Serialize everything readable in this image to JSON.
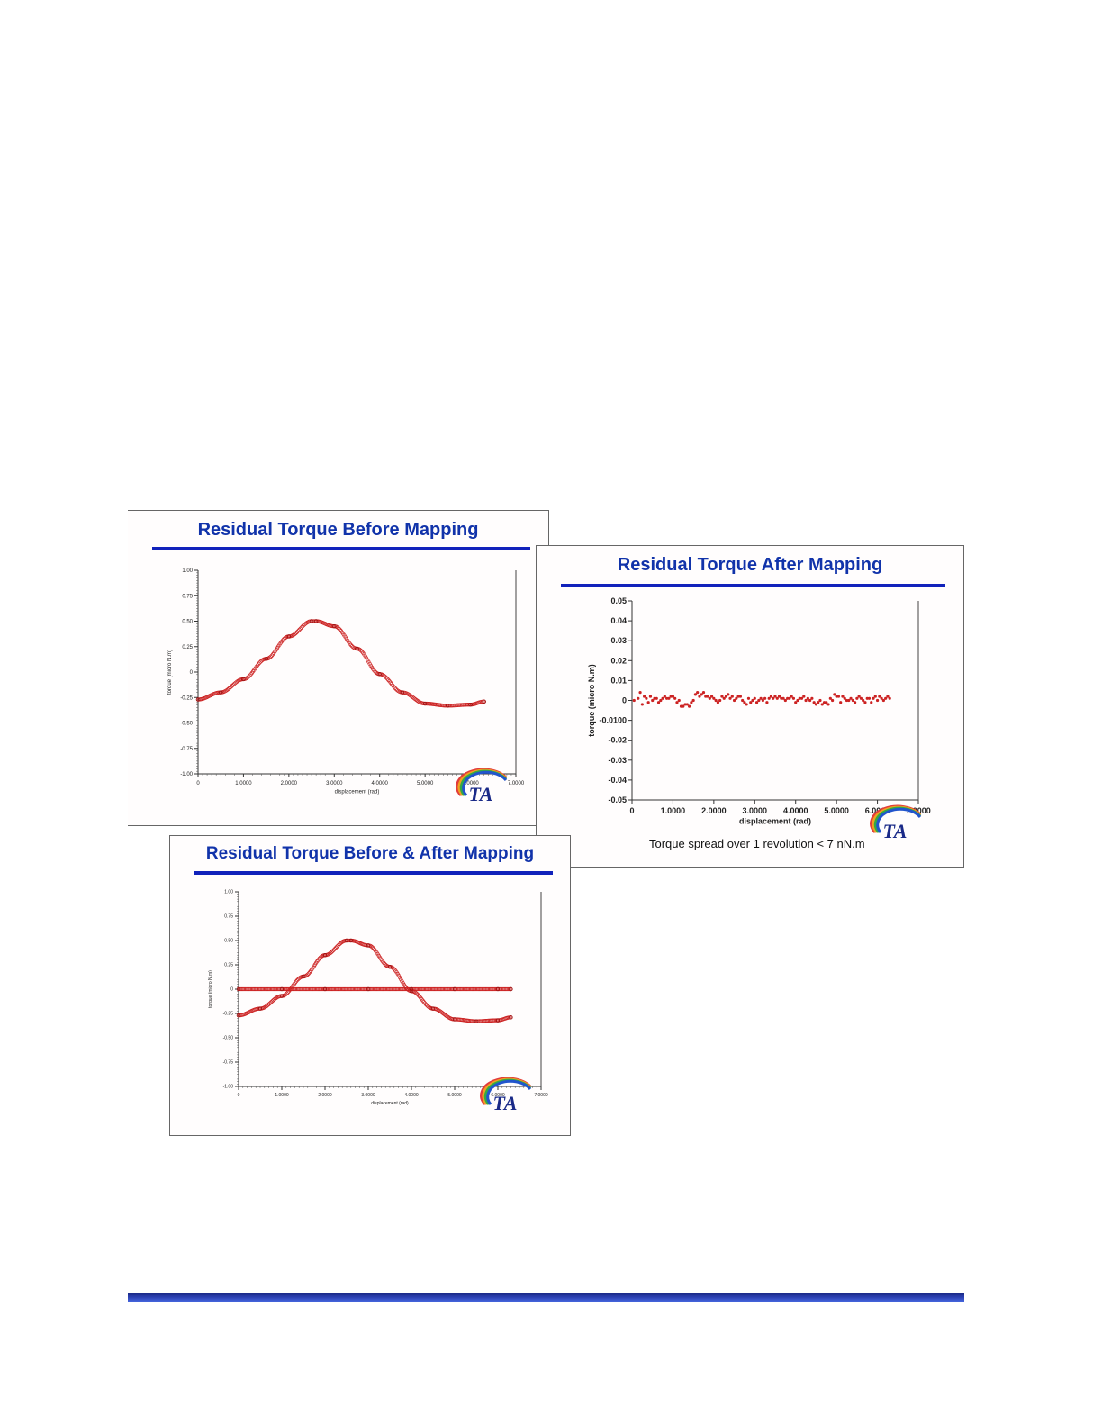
{
  "colors": {
    "title": "#1133aa",
    "rule": "#1122bb",
    "data": "#cc2222",
    "footer": "#2b3fb0"
  },
  "slides": {
    "before": {
      "title": "Residual Torque Before Mapping",
      "logo": {
        "text": "TA",
        "icon": "ta-logo-icon"
      }
    },
    "after": {
      "title": "Residual Torque After Mapping",
      "note": "Torque spread over 1 revolution < 7 nN.m",
      "logo": {
        "text": "TA",
        "icon": "ta-logo-icon"
      }
    },
    "combined": {
      "title": "Residual Torque Before & After Mapping",
      "logo": {
        "text": "TA",
        "icon": "ta-logo-icon"
      }
    }
  },
  "chart_data": [
    {
      "id": "before",
      "type": "scatter",
      "title": "",
      "xlabel": "displacement (rad)",
      "ylabel": "torque (micro N.m)",
      "xlim": [
        0,
        7
      ],
      "ylim": [
        -1,
        1
      ],
      "xticks": [
        0,
        1,
        2,
        3,
        4,
        5,
        6,
        7
      ],
      "xtick_labels": [
        "0",
        "1.0000",
        "2.0000",
        "3.0000",
        "4.0000",
        "5.0000",
        "6.0000",
        "7.0000"
      ],
      "yticks": [
        1,
        0.75,
        0.5,
        0.25,
        0,
        -0.25,
        -0.5,
        -0.75,
        -1
      ],
      "ytick_labels": [
        "1.00",
        "0.75",
        "0.50",
        "0.25",
        "0",
        "-0.25",
        "-0.50",
        "-0.75",
        "-1.00"
      ],
      "grid": false,
      "series": [
        {
          "x": [
            0,
            0.5,
            1.0,
            1.5,
            2.0,
            2.5,
            2.6,
            3.0,
            3.5,
            4.0,
            4.5,
            5.0,
            5.5,
            6.0,
            6.3
          ],
          "y": [
            -0.27,
            -0.2,
            -0.07,
            0.13,
            0.35,
            0.5,
            0.5,
            0.45,
            0.23,
            -0.02,
            -0.2,
            -0.31,
            -0.33,
            -0.32,
            -0.29
          ]
        }
      ]
    },
    {
      "id": "after",
      "type": "scatter",
      "title": "",
      "xlabel": "displacement (rad)",
      "ylabel": "torque (micro N.m)",
      "xlim": [
        0,
        7
      ],
      "ylim": [
        -0.05,
        0.05
      ],
      "xticks": [
        0,
        1,
        2,
        3,
        4,
        5,
        6,
        7
      ],
      "xtick_labels": [
        "0",
        "1.0000",
        "2.0000",
        "3.0000",
        "4.0000",
        "5.0000",
        "6.0000",
        "7.0000"
      ],
      "yticks": [
        0.05,
        0.04,
        0.03,
        0.02,
        0.01,
        0,
        -0.01,
        -0.02,
        -0.03,
        -0.04,
        -0.05
      ],
      "ytick_labels": [
        "0.05",
        "0.04",
        "0.03",
        "0.02",
        "0.01",
        "0",
        "-0.0100",
        "-0.02",
        "-0.03",
        "-0.04",
        "-0.05"
      ],
      "grid": false,
      "series": [
        {
          "x": [
            0.05,
            0.15,
            0.2,
            0.25,
            0.3,
            0.35,
            0.4,
            0.45,
            0.5,
            0.55,
            0.6,
            0.65,
            0.7,
            0.75,
            0.8,
            0.85,
            0.9,
            0.95,
            1.0,
            1.05,
            1.1,
            1.15,
            1.2,
            1.25,
            1.3,
            1.35,
            1.4,
            1.45,
            1.5,
            1.55,
            1.6,
            1.65,
            1.7,
            1.75,
            1.8,
            1.85,
            1.9,
            1.95,
            2.0,
            2.05,
            2.1,
            2.15,
            2.2,
            2.25,
            2.3,
            2.35,
            2.4,
            2.45,
            2.5,
            2.55,
            2.6,
            2.65,
            2.7,
            2.75,
            2.8,
            2.85,
            2.9,
            2.95,
            3.0,
            3.05,
            3.1,
            3.15,
            3.2,
            3.25,
            3.3,
            3.35,
            3.4,
            3.45,
            3.5,
            3.55,
            3.6,
            3.65,
            3.7,
            3.75,
            3.8,
            3.85,
            3.9,
            3.95,
            4.0,
            4.05,
            4.1,
            4.15,
            4.2,
            4.25,
            4.3,
            4.35,
            4.4,
            4.45,
            4.5,
            4.55,
            4.6,
            4.65,
            4.7,
            4.75,
            4.8,
            4.85,
            4.9,
            4.95,
            5.0,
            5.05,
            5.1,
            5.15,
            5.2,
            5.25,
            5.3,
            5.35,
            5.4,
            5.45,
            5.5,
            5.55,
            5.6,
            5.65,
            5.7,
            5.75,
            5.8,
            5.85,
            5.9,
            5.95,
            6.0,
            6.05,
            6.1,
            6.15,
            6.2,
            6.25,
            6.3
          ],
          "y": [
            0.0,
            0.001,
            0.004,
            -0.002,
            0.002,
            0.001,
            -0.001,
            0.002,
            0.0,
            0.001,
            0.001,
            -0.001,
            0.0,
            0.001,
            0.002,
            0.001,
            0.001,
            0.002,
            0.002,
            0.001,
            -0.001,
            0.0,
            -0.003,
            -0.003,
            -0.002,
            -0.002,
            -0.003,
            -0.001,
            0.0,
            0.003,
            0.004,
            0.002,
            0.003,
            0.004,
            0.002,
            0.002,
            0.001,
            0.002,
            0.001,
            0.0,
            -0.001,
            0.0,
            0.002,
            0.001,
            0.002,
            0.003,
            0.001,
            0.002,
            0.0,
            0.001,
            0.002,
            0.002,
            0.0,
            -0.001,
            -0.002,
            0.001,
            -0.001,
            0.0,
            0.001,
            -0.001,
            0.0,
            0.001,
            0.0,
            0.001,
            -0.001,
            0.001,
            0.002,
            0.001,
            0.002,
            0.001,
            0.002,
            0.001,
            0.001,
            0.0,
            0.001,
            0.001,
            0.002,
            0.001,
            -0.001,
            0.0,
            0.001,
            0.001,
            0.002,
            0.0,
            0.001,
            0.0,
            0.001,
            -0.001,
            -0.002,
            -0.001,
            0.0,
            -0.002,
            -0.001,
            -0.001,
            -0.002,
            0.001,
            0.0,
            0.003,
            0.002,
            0.002,
            -0.001,
            0.002,
            0.001,
            0.0,
            0.0,
            0.001,
            0.0,
            -0.001,
            0.001,
            0.002,
            0.001,
            0.0,
            -0.001,
            0.001,
            0.001,
            -0.001,
            0.001,
            0.002,
            0.0,
            0.002,
            0.001,
            0.0,
            0.001,
            0.002,
            0.001
          ]
        }
      ]
    },
    {
      "id": "combined",
      "type": "scatter",
      "title": "",
      "xlabel": "displacement (rad)",
      "ylabel": "torque (micro N.m)",
      "xlim": [
        0,
        7
      ],
      "ylim": [
        -1,
        1
      ],
      "xticks": [
        0,
        1,
        2,
        3,
        4,
        5,
        6,
        7
      ],
      "xtick_labels": [
        "0",
        "1.0000",
        "2.0000",
        "3.0000",
        "4.0000",
        "5.0000",
        "6.0000",
        "7.0000"
      ],
      "yticks": [
        1,
        0.75,
        0.5,
        0.25,
        0,
        -0.25,
        -0.5,
        -0.75,
        -1
      ],
      "ytick_labels": [
        "1.00",
        "0.75",
        "0.50",
        "0.25",
        "0",
        "-0.25",
        "-0.50",
        "-0.75",
        "-1.00"
      ],
      "grid": false,
      "series": [
        {
          "x": [
            0,
            0.5,
            1.0,
            1.5,
            2.0,
            2.5,
            2.6,
            3.0,
            3.5,
            4.0,
            4.5,
            5.0,
            5.5,
            6.0,
            6.3
          ],
          "y": [
            -0.27,
            -0.2,
            -0.07,
            0.13,
            0.35,
            0.5,
            0.5,
            0.45,
            0.23,
            -0.02,
            -0.2,
            -0.31,
            -0.33,
            -0.32,
            -0.29
          ]
        },
        {
          "x": [
            0,
            1,
            2,
            3,
            4,
            5,
            6,
            6.3
          ],
          "y": [
            0,
            0,
            0,
            0,
            0,
            0,
            0,
            0
          ]
        }
      ]
    }
  ]
}
